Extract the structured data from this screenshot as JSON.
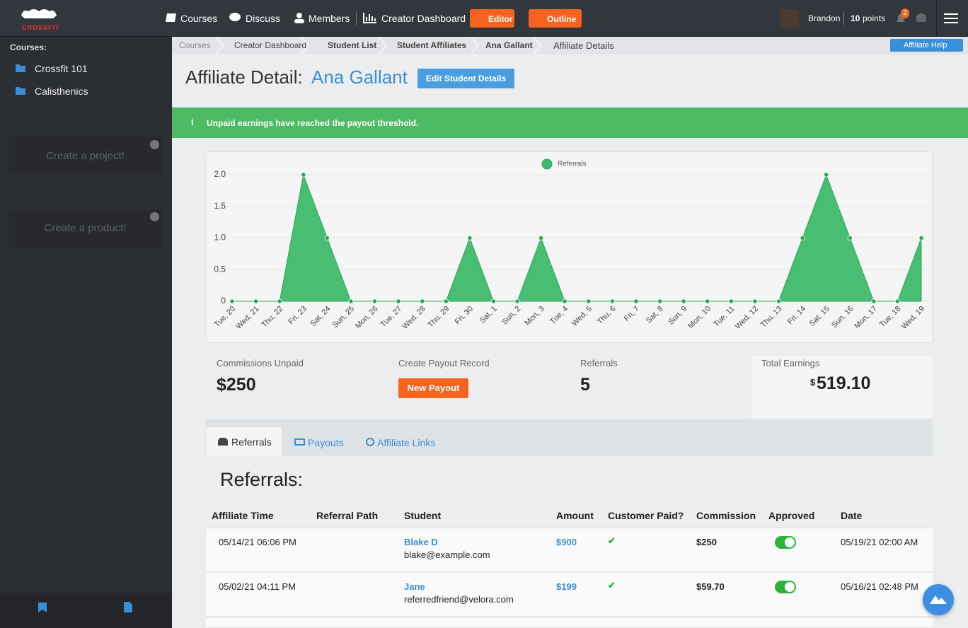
{
  "nav": {
    "logo": "CROSSFIT",
    "links": [
      "Courses",
      "Discuss",
      "Members",
      "Creator Dashboard"
    ],
    "buttons": [
      "Editor",
      "Outline"
    ],
    "user": "Brandon",
    "points": "10",
    "points_label": "points",
    "notifications": "2"
  },
  "sidebar": {
    "heading": "Courses:",
    "courses": [
      "Crossfit 101",
      "Calisthenics"
    ],
    "cards": [
      "Create a project!",
      "Create a product!"
    ]
  },
  "breadcrumb": [
    "Courses",
    "Creator Dashboard",
    "Student List",
    "Student Affiliates",
    "Ana Gallant",
    "Affiliate Details"
  ],
  "help_button": "Affiliate Help",
  "header": {
    "title": "Affiliate Detail:",
    "name": "Ana Gallant",
    "edit_button": "Edit Student Details"
  },
  "alert": "Unpaid earnings have reached the payout threshold.",
  "chart_data": {
    "type": "area",
    "categories": [
      "Tue, 20",
      "Wed, 21",
      "Thu, 22",
      "Fri, 23",
      "Sat, 24",
      "Sun, 25",
      "Mon, 26",
      "Tue, 27",
      "Wed, 28",
      "Thu, 29",
      "Fri, 30",
      "Sat, 1",
      "Sun, 2",
      "Mon, 3",
      "Tue, 4",
      "Wed, 5",
      "Thu, 6",
      "Fri, 7",
      "Sat, 8",
      "Sun, 9",
      "Mon, 10",
      "Tue, 11",
      "Wed, 12",
      "Thu, 13",
      "Fri, 14",
      "Sat, 15",
      "Sun, 16",
      "Mon, 17",
      "Tue, 18",
      "Wed, 19"
    ],
    "series": [
      {
        "name": "Referrals",
        "color": "#3dba6a",
        "values": [
          0,
          0,
          0,
          2,
          1,
          0,
          0,
          0,
          0,
          0,
          1,
          0,
          0,
          1,
          0,
          0,
          0,
          0,
          0,
          0,
          0,
          0,
          0,
          0,
          1,
          2,
          1,
          0,
          0,
          1
        ]
      }
    ],
    "ylim": [
      0,
      2
    ],
    "yticks": [
      0,
      0.5,
      {
        "value": 1,
        "label": "1.0"
      },
      1.5,
      {
        "value": 2,
        "label": "2.0"
      }
    ],
    "grid": true,
    "legend": "top"
  },
  "stats": {
    "unpaid_label": "Commissions Unpaid",
    "unpaid": "$250",
    "payout_label": "Create Payout Record",
    "payout_button": "New Payout",
    "referrals_label": "Referrals",
    "referrals": "5",
    "earnings_label": "Total Earnings",
    "earnings_currency": "$",
    "earnings": "519.10"
  },
  "tabs": [
    "Referrals",
    "Payouts",
    "Affiliate Links"
  ],
  "table": {
    "heading": "Referrals:",
    "columns": [
      "Affiliate Time",
      "Referral Path",
      "Student",
      "Amount",
      "Customer Paid?",
      "Commission",
      "Approved",
      "Date"
    ],
    "rows": [
      {
        "time": "05/14/21 06:06 PM",
        "student": "Blake D",
        "email": "blake@example.com",
        "amount": "$900",
        "commission": "$250",
        "date": "05/19/21 02:00 AM"
      },
      {
        "time": "05/02/21 04:11 PM",
        "student": "Jane",
        "email": "referredfriend@velora.com",
        "amount": "$199",
        "commission": "$59.70",
        "date": "05/16/21 02:48 PM"
      }
    ]
  }
}
